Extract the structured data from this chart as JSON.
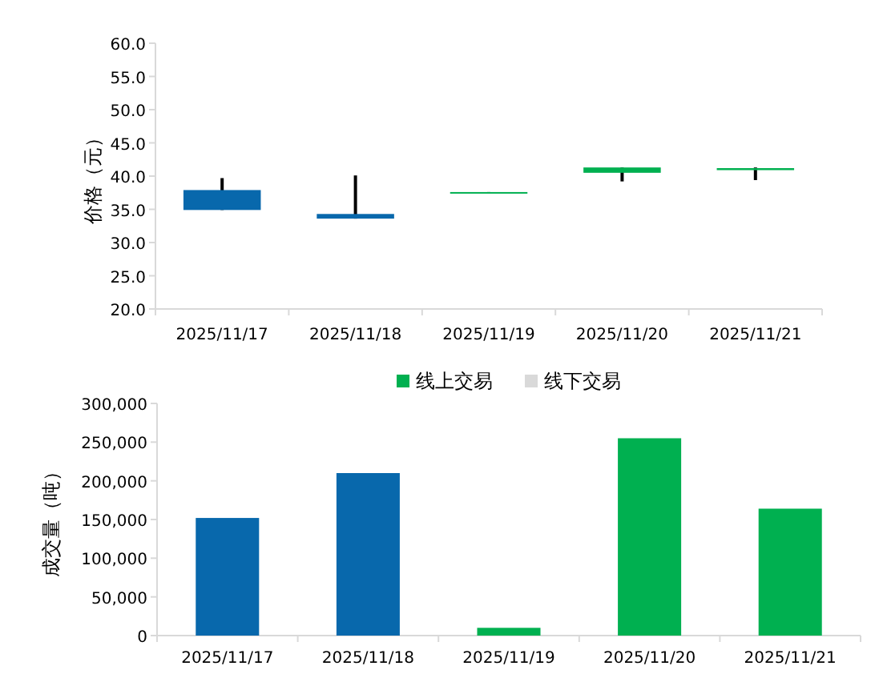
{
  "chart_data": [
    {
      "type": "candlestick",
      "ylabel": "价格（元）",
      "categories": [
        "2025/11/17",
        "2025/11/18",
        "2025/11/19",
        "2025/11/20",
        "2025/11/21"
      ],
      "ohlc": [
        [
          37.9,
          39.7,
          34.9,
          34.9
        ],
        [
          34.3,
          40.1,
          33.6,
          33.6
        ],
        [
          37.5,
          37.6,
          37.5,
          37.6
        ],
        [
          40.5,
          41.3,
          39.2,
          41.3
        ],
        [
          40.9,
          41.3,
          39.4,
          41.2
        ]
      ],
      "colors": [
        "#0868ac",
        "#0868ac",
        "#00b050",
        "#00b050",
        "#00b050"
      ],
      "ylim": [
        20,
        60
      ],
      "yticks": [
        {
          "value": 20,
          "label": "20.0"
        },
        {
          "value": 25,
          "label": "25.0"
        },
        {
          "value": 30,
          "label": "30.0"
        },
        {
          "value": 35,
          "label": "35.0"
        },
        {
          "value": 40,
          "label": "40.0"
        },
        {
          "value": 45,
          "label": "45.0"
        },
        {
          "value": 50,
          "label": "50.0"
        },
        {
          "value": 55,
          "label": "55.0"
        },
        {
          "value": 60,
          "label": "60.0"
        }
      ],
      "grid": false
    },
    {
      "type": "bar",
      "ylabel": "成交量（吨）",
      "categories": [
        "2025/11/17",
        "2025/11/18",
        "2025/11/19",
        "2025/11/20",
        "2025/11/21"
      ],
      "series": [
        {
          "name": "线上交易",
          "color": "#00b050",
          "colors": [
            "#0868ac",
            "#0868ac",
            "#00b050",
            "#00b050",
            "#00b050"
          ],
          "values": [
            152000,
            210000,
            10000,
            255000,
            164000
          ]
        },
        {
          "name": "线下交易",
          "color": "#d9d9d9",
          "values": [
            null,
            null,
            null,
            null,
            null
          ]
        }
      ],
      "ylim": [
        0,
        300000
      ],
      "yticks": [
        0,
        {
          "value": 50000,
          "label": "50,000"
        },
        {
          "value": 100000,
          "label": "100,000"
        },
        {
          "value": 150000,
          "label": "150,000"
        },
        {
          "value": 200000,
          "label": "200,000"
        },
        {
          "value": 250000,
          "label": "250,000"
        },
        {
          "value": 300000,
          "label": "300,000"
        }
      ],
      "grid": false,
      "legend": "top"
    }
  ]
}
